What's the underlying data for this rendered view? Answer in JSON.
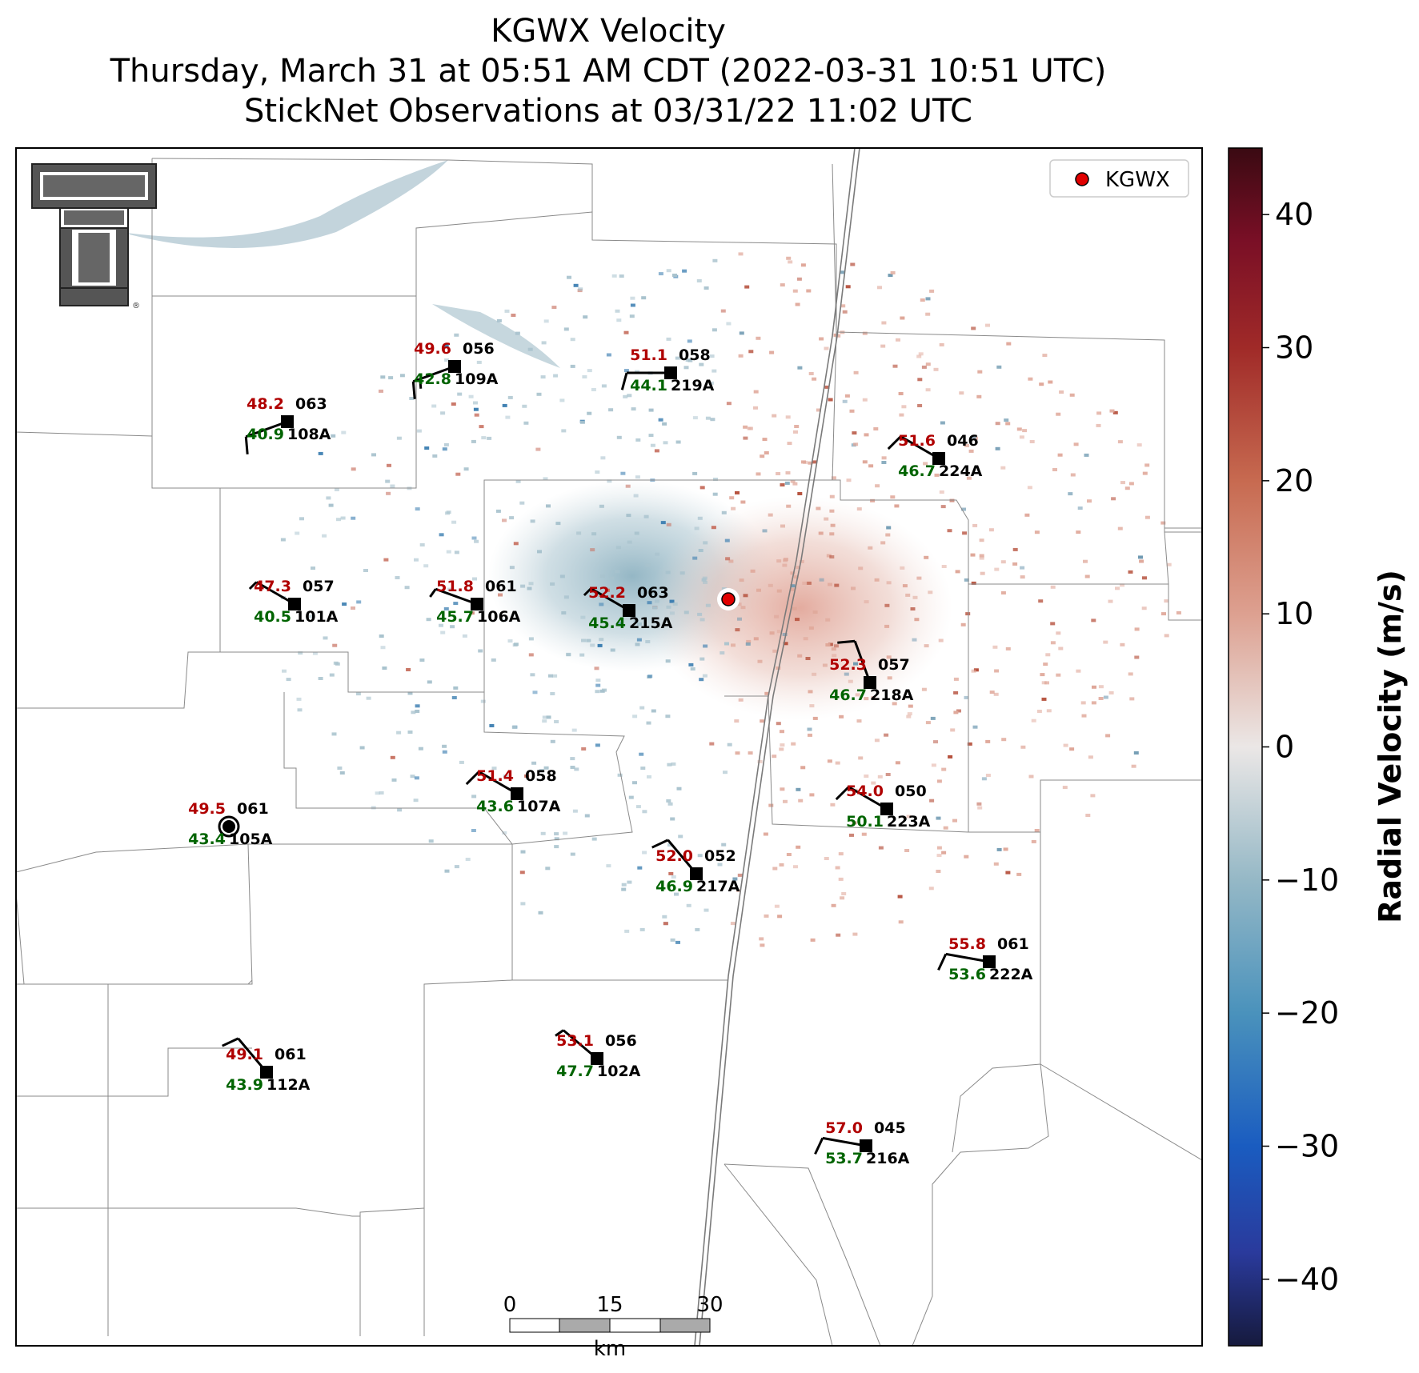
{
  "titles": {
    "line1": "KGWX Velocity",
    "line2": "Thursday, March 31 at 05:51 AM CDT (2022-03-31 10:51 UTC)",
    "line3": "StickNet Observations at 03/31/22 11:02 UTC"
  },
  "legend": {
    "label": "KGWX",
    "marker_color": "#e00000"
  },
  "logo": {
    "name": "texas-tech-double-t",
    "text": "T"
  },
  "colorbar": {
    "label": "Radial Velocity (m/s)",
    "range": [
      -45,
      45
    ],
    "ticks": [
      "40",
      "30",
      "20",
      "10",
      "0",
      "−10",
      "−20",
      "−30",
      "−40"
    ],
    "tick_values": [
      40,
      30,
      20,
      10,
      0,
      -10,
      -20,
      -30,
      -40
    ],
    "stops": [
      {
        "v": -45,
        "c": "#161a3d"
      },
      {
        "v": -38,
        "c": "#2a3a9c"
      },
      {
        "v": -30,
        "c": "#1a5cc0"
      },
      {
        "v": -20,
        "c": "#4a92bc"
      },
      {
        "v": -10,
        "c": "#95b8c6"
      },
      {
        "v": 0,
        "c": "#ebe7e6"
      },
      {
        "v": 10,
        "c": "#dda090"
      },
      {
        "v": 20,
        "c": "#c76a50"
      },
      {
        "v": 30,
        "c": "#a02a28"
      },
      {
        "v": 38,
        "c": "#7a0f26"
      },
      {
        "v": 45,
        "c": "#3a0a12"
      }
    ]
  },
  "scalebar": {
    "ticks": [
      "0",
      "15",
      "30"
    ],
    "unit": "km"
  },
  "stations": [
    {
      "id": "109A",
      "temp": "49.6",
      "dew": "42.8",
      "dir": "056",
      "wdir": 250,
      "ws": 15
    },
    {
      "id": "219A",
      "temp": "51.1",
      "dew": "44.1",
      "dir": "058",
      "wdir": 270,
      "ws": 10
    },
    {
      "id": "108A",
      "temp": "48.2",
      "dew": "40.9",
      "dir": "063",
      "wdir": 250,
      "ws": 10
    },
    {
      "id": "224A",
      "temp": "51.6",
      "dew": "46.7",
      "dir": "046",
      "wdir": 300,
      "ws": 10
    },
    {
      "id": "101A",
      "temp": "47.3",
      "dew": "40.5",
      "dir": "057",
      "wdir": 300,
      "ws": 5
    },
    {
      "id": "106A",
      "temp": "51.8",
      "dew": "45.7",
      "dir": "061",
      "wdir": 290,
      "ws": 5
    },
    {
      "id": "215A",
      "temp": "52.2",
      "dew": "45.4",
      "dir": "063",
      "wdir": 300,
      "ws": 5
    },
    {
      "id": "218A",
      "temp": "52.3",
      "dew": "46.7",
      "dir": "057",
      "wdir": 340,
      "ws": 10
    },
    {
      "id": "107A",
      "temp": "51.4",
      "dew": "43.6",
      "dir": "058",
      "wdir": 300,
      "ws": 10
    },
    {
      "id": "223A",
      "temp": "54.0",
      "dew": "50.1",
      "dir": "050",
      "wdir": 300,
      "ws": 10
    },
    {
      "id": "105A",
      "temp": "49.5",
      "dew": "43.4",
      "dir": "061",
      "wdir": null,
      "ws": 0
    },
    {
      "id": "217A",
      "temp": "52.0",
      "dew": "46.9",
      "dir": "052",
      "wdir": 320,
      "ws": 10
    },
    {
      "id": "222A",
      "temp": "55.8",
      "dew": "53.6",
      "dir": "061",
      "wdir": 280,
      "ws": 10
    },
    {
      "id": "102A",
      "temp": "53.1",
      "dew": "47.7",
      "dir": "056",
      "wdir": 310,
      "ws": 5
    },
    {
      "id": "112A",
      "temp": "49.1",
      "dew": "43.9",
      "dir": "061",
      "wdir": 320,
      "ws": 10
    },
    {
      "id": "216A",
      "temp": "57.0",
      "dew": "53.7",
      "dir": "045",
      "wdir": 280,
      "ws": 10
    }
  ]
}
